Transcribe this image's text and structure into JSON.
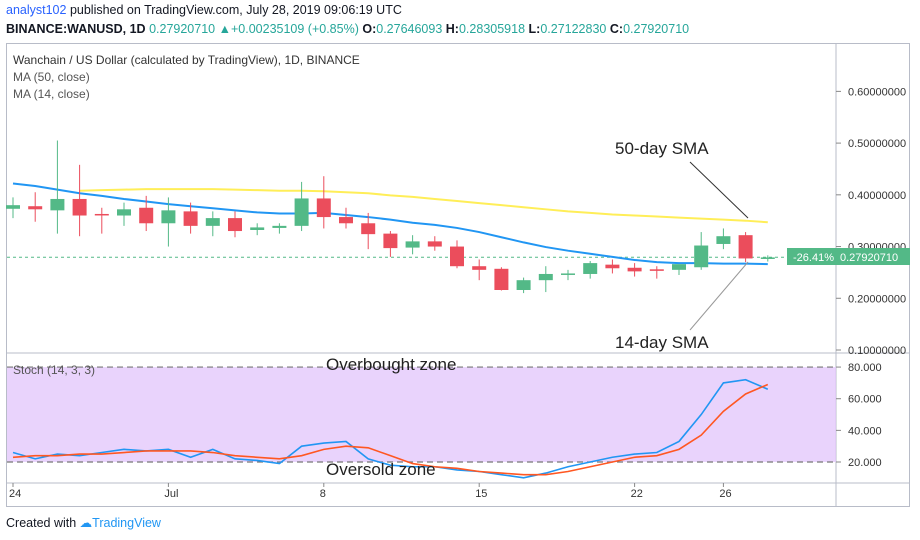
{
  "header": {
    "user": "analyst102",
    "published_text": " published on TradingView.com, July 28, 2019 09:06:19 UTC",
    "symbol": "BINANCE:WANUSD, 1D",
    "last": "0.27920710",
    "change": "+0.00235109 (+0.85%)",
    "o_label": "O:",
    "o": "0.27646093",
    "h_label": "H:",
    "h": "0.28305918",
    "l_label": "L:",
    "l": "0.27122830",
    "c_label": "C:",
    "c": "0.27920710"
  },
  "legend": {
    "title": "Wanchain / US Dollar (calculated by TradingView), 1D, BINANCE",
    "ma50": "MA (50, close)",
    "ma14": "MA (14, close)",
    "stoch": "Stoch (14, 3, 3)"
  },
  "annotations": {
    "sma50": "50-day SMA",
    "sma14": "14-day SMA",
    "overbought": "Overbought zone",
    "oversold": "Oversold zone"
  },
  "price_badge": {
    "pct": "-26.41%",
    "price": "0.27920710"
  },
  "footer": {
    "prefix": "Created with",
    "brand": "TradingView"
  },
  "colors": {
    "up": "#53b987",
    "down": "#eb4d5c",
    "ma50": "#ffee58",
    "ma14": "#2196f3",
    "stoch_k": "#2196f3",
    "stoch_d": "#ff5722",
    "band": "#e1c4fb",
    "badge": "#53b987"
  },
  "chart_data": [
    {
      "type": "candlestick",
      "y_axis_ticks": [
        "0.60000000",
        "0.50000000",
        "0.40000000",
        "0.30000000",
        "0.20000000",
        "0.10000000"
      ],
      "ylim": [
        0.1,
        0.68
      ],
      "x_ticks": [
        {
          "label": "24",
          "index": 0
        },
        {
          "label": "Jul",
          "index": 7
        },
        {
          "label": "8",
          "index": 14
        },
        {
          "label": "15",
          "index": 21
        },
        {
          "label": "22",
          "index": 28
        },
        {
          "label": "26",
          "index": 32
        }
      ],
      "candles": [
        {
          "o": 0.373,
          "h": 0.395,
          "l": 0.355,
          "c": 0.38
        },
        {
          "o": 0.378,
          "h": 0.405,
          "l": 0.348,
          "c": 0.372
        },
        {
          "o": 0.37,
          "h": 0.505,
          "l": 0.325,
          "c": 0.392
        },
        {
          "o": 0.392,
          "h": 0.458,
          "l": 0.32,
          "c": 0.36
        },
        {
          "o": 0.363,
          "h": 0.375,
          "l": 0.325,
          "c": 0.362
        },
        {
          "o": 0.36,
          "h": 0.385,
          "l": 0.34,
          "c": 0.372
        },
        {
          "o": 0.375,
          "h": 0.398,
          "l": 0.33,
          "c": 0.345
        },
        {
          "o": 0.345,
          "h": 0.395,
          "l": 0.3,
          "c": 0.37
        },
        {
          "o": 0.368,
          "h": 0.385,
          "l": 0.325,
          "c": 0.34
        },
        {
          "o": 0.34,
          "h": 0.368,
          "l": 0.32,
          "c": 0.355
        },
        {
          "o": 0.355,
          "h": 0.368,
          "l": 0.318,
          "c": 0.33
        },
        {
          "o": 0.332,
          "h": 0.345,
          "l": 0.322,
          "c": 0.337
        },
        {
          "o": 0.336,
          "h": 0.345,
          "l": 0.325,
          "c": 0.34
        },
        {
          "o": 0.34,
          "h": 0.425,
          "l": 0.33,
          "c": 0.393
        },
        {
          "o": 0.393,
          "h": 0.436,
          "l": 0.335,
          "c": 0.357
        },
        {
          "o": 0.357,
          "h": 0.375,
          "l": 0.335,
          "c": 0.345
        },
        {
          "o": 0.345,
          "h": 0.365,
          "l": 0.295,
          "c": 0.324
        },
        {
          "o": 0.325,
          "h": 0.33,
          "l": 0.28,
          "c": 0.297
        },
        {
          "o": 0.298,
          "h": 0.322,
          "l": 0.285,
          "c": 0.31
        },
        {
          "o": 0.31,
          "h": 0.32,
          "l": 0.292,
          "c": 0.3
        },
        {
          "o": 0.3,
          "h": 0.312,
          "l": 0.258,
          "c": 0.262
        },
        {
          "o": 0.262,
          "h": 0.275,
          "l": 0.235,
          "c": 0.255
        },
        {
          "o": 0.257,
          "h": 0.26,
          "l": 0.215,
          "c": 0.216
        },
        {
          "o": 0.216,
          "h": 0.24,
          "l": 0.21,
          "c": 0.235
        },
        {
          "o": 0.235,
          "h": 0.262,
          "l": 0.212,
          "c": 0.247
        },
        {
          "o": 0.247,
          "h": 0.255,
          "l": 0.235,
          "c": 0.248
        },
        {
          "o": 0.247,
          "h": 0.272,
          "l": 0.238,
          "c": 0.268
        },
        {
          "o": 0.265,
          "h": 0.275,
          "l": 0.248,
          "c": 0.258
        },
        {
          "o": 0.259,
          "h": 0.268,
          "l": 0.242,
          "c": 0.252
        },
        {
          "o": 0.256,
          "h": 0.262,
          "l": 0.238,
          "c": 0.253
        },
        {
          "o": 0.255,
          "h": 0.265,
          "l": 0.245,
          "c": 0.266
        },
        {
          "o": 0.26,
          "h": 0.328,
          "l": 0.255,
          "c": 0.302
        },
        {
          "o": 0.305,
          "h": 0.335,
          "l": 0.295,
          "c": 0.32
        },
        {
          "o": 0.322,
          "h": 0.328,
          "l": 0.27,
          "c": 0.277
        },
        {
          "o": 0.276,
          "h": 0.283,
          "l": 0.271,
          "c": 0.279
        }
      ],
      "series": [
        {
          "name": "MA (50, close)",
          "values": [
            null,
            null,
            null,
            0.408,
            0.409,
            0.41,
            0.411,
            0.411,
            0.411,
            0.411,
            0.41,
            0.409,
            0.408,
            0.408,
            0.407,
            0.405,
            0.403,
            0.399,
            0.396,
            0.392,
            0.388,
            0.384,
            0.38,
            0.376,
            0.372,
            0.368,
            0.365,
            0.362,
            0.36,
            0.358,
            0.356,
            0.354,
            0.352,
            0.35,
            0.347
          ]
        },
        {
          "name": "MA (14, close)",
          "values": [
            0.422,
            0.417,
            0.41,
            0.403,
            0.398,
            0.392,
            0.387,
            0.382,
            0.378,
            0.374,
            0.37,
            0.366,
            0.364,
            0.364,
            0.365,
            0.361,
            0.357,
            0.352,
            0.346,
            0.342,
            0.336,
            0.328,
            0.318,
            0.308,
            0.299,
            0.292,
            0.286,
            0.28,
            0.274,
            0.27,
            0.268,
            0.268,
            0.267,
            0.267,
            0.266
          ]
        }
      ],
      "price_line": 0.2792
    },
    {
      "type": "line",
      "title": "Stoch (14, 3, 3)",
      "ylim": [
        8,
        87
      ],
      "y_axis_ticks": [
        "80.000",
        "60.000",
        "40.000",
        "20.000"
      ],
      "bands": [
        20,
        80
      ],
      "series": [
        {
          "name": "%K",
          "values": [
            26,
            22,
            25,
            24,
            26,
            28,
            27,
            28,
            23,
            28,
            22,
            21,
            19,
            30,
            32,
            33,
            22,
            18,
            17,
            17,
            15,
            14,
            12,
            10,
            13,
            17,
            20,
            23,
            25,
            26,
            33,
            50,
            70,
            72,
            66
          ]
        },
        {
          "name": "%D",
          "values": [
            23,
            24,
            24,
            25,
            25,
            26,
            27,
            27,
            27,
            26,
            24,
            23,
            22,
            24,
            28,
            30,
            29,
            24,
            19,
            17,
            16,
            14,
            13,
            12,
            12,
            14,
            17,
            20,
            23,
            24,
            28,
            37,
            52,
            63,
            69
          ]
        }
      ]
    }
  ]
}
